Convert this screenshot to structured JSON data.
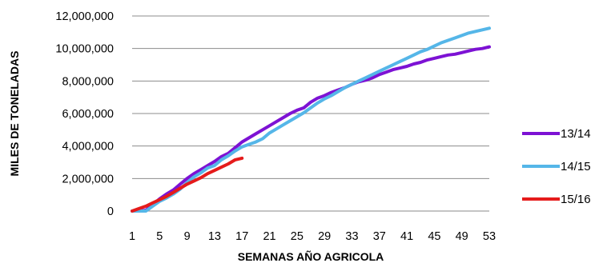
{
  "chart_data": {
    "type": "line",
    "title": "",
    "xlabel": "SEMANAS AÑO AGRICOLA",
    "ylabel": "MILES DE TONELADAS",
    "xlim": [
      1,
      53
    ],
    "ylim": [
      0,
      12000000
    ],
    "x_ticks": [
      "1",
      "5",
      "9",
      "13",
      "17",
      "21",
      "25",
      "29",
      "33",
      "37",
      "41",
      "45",
      "49",
      "53"
    ],
    "y_ticks": [
      "0",
      "2,000,000",
      "4,000,000",
      "6,000,000",
      "8,000,000",
      "10,000,000",
      "12,000,000"
    ],
    "grid": "horizontal",
    "legend_position": "right",
    "series": [
      {
        "name": "13/14",
        "color": "#7d12d4",
        "x": [
          1,
          2,
          3,
          4,
          5,
          6,
          7,
          8,
          9,
          10,
          11,
          12,
          13,
          14,
          15,
          16,
          17,
          18,
          19,
          20,
          21,
          22,
          23,
          24,
          25,
          26,
          27,
          28,
          29,
          30,
          31,
          32,
          33,
          34,
          35,
          36,
          37,
          38,
          39,
          40,
          41,
          42,
          43,
          44,
          45,
          46,
          47,
          48,
          49,
          50,
          51,
          52,
          53
        ],
        "y": [
          0,
          0,
          50000,
          400000,
          750000,
          1050000,
          1300000,
          1650000,
          2000000,
          2300000,
          2550000,
          2800000,
          3050000,
          3350000,
          3550000,
          3900000,
          4250000,
          4500000,
          4750000,
          5000000,
          5250000,
          5500000,
          5750000,
          6000000,
          6200000,
          6350000,
          6700000,
          6950000,
          7100000,
          7300000,
          7450000,
          7600000,
          7800000,
          7950000,
          8050000,
          8200000,
          8400000,
          8550000,
          8700000,
          8800000,
          8900000,
          9050000,
          9150000,
          9300000,
          9400000,
          9500000,
          9600000,
          9650000,
          9750000,
          9850000,
          9950000,
          10000000,
          10100000
        ]
      },
      {
        "name": "14/15",
        "color": "#55b6e8",
        "x": [
          1,
          2,
          3,
          4,
          5,
          6,
          7,
          8,
          9,
          10,
          11,
          12,
          13,
          14,
          15,
          16,
          17,
          18,
          19,
          20,
          21,
          22,
          23,
          24,
          25,
          26,
          27,
          28,
          29,
          30,
          31,
          32,
          33,
          34,
          35,
          36,
          37,
          38,
          39,
          40,
          41,
          42,
          43,
          44,
          45,
          46,
          47,
          48,
          49,
          50,
          51,
          52,
          53
        ],
        "y": [
          0,
          0,
          0,
          300000,
          600000,
          800000,
          1050000,
          1350000,
          1750000,
          2100000,
          2350000,
          2650000,
          2800000,
          3150000,
          3400000,
          3700000,
          3950000,
          4100000,
          4250000,
          4450000,
          4800000,
          5050000,
          5300000,
          5550000,
          5800000,
          6050000,
          6350000,
          6650000,
          6900000,
          7100000,
          7350000,
          7600000,
          7800000,
          8000000,
          8200000,
          8400000,
          8600000,
          8800000,
          9000000,
          9200000,
          9400000,
          9600000,
          9800000,
          9950000,
          10150000,
          10350000,
          10500000,
          10650000,
          10800000,
          10950000,
          11050000,
          11150000,
          11250000
        ]
      },
      {
        "name": "15/16",
        "color": "#e51b1b",
        "x": [
          1,
          2,
          3,
          4,
          5,
          6,
          7,
          8,
          9,
          10,
          11,
          12,
          13,
          14,
          15,
          16,
          17
        ],
        "y": [
          0,
          150000,
          300000,
          500000,
          700000,
          900000,
          1150000,
          1400000,
          1650000,
          1850000,
          2050000,
          2300000,
          2500000,
          2700000,
          2900000,
          3150000,
          3250000
        ]
      }
    ]
  }
}
